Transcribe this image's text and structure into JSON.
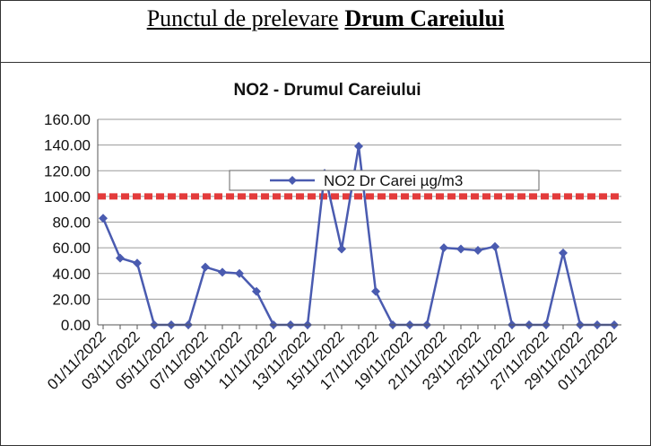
{
  "header": {
    "title_prefix": "Punctul de prelevare",
    "title_bold": "Drum Careiului"
  },
  "chart_data": {
    "type": "line",
    "title": "NO2 - Drumul Careiului",
    "categories": [
      "01/11/2022",
      null,
      "03/11/2022",
      null,
      "05/11/2022",
      null,
      "07/11/2022",
      null,
      "09/11/2022",
      null,
      "11/11/2022",
      null,
      "13/11/2022",
      null,
      "15/11/2022",
      null,
      "17/11/2022",
      null,
      "19/11/2022",
      null,
      "21/11/2022",
      null,
      "23/11/2022",
      null,
      "25/11/2022",
      null,
      "27/11/2022",
      null,
      "29/11/2022",
      null,
      "01/12/2022"
    ],
    "series": [
      {
        "name": "NO2 Dr Carei  µg/m3",
        "color": "#4a5bb0",
        "values": [
          83,
          52,
          48,
          0,
          0,
          0,
          45,
          41,
          40,
          26,
          0,
          0,
          0,
          118,
          59,
          139,
          26,
          0,
          0,
          0,
          60,
          59,
          58,
          61,
          0,
          0,
          0,
          56,
          0,
          0,
          0
        ]
      }
    ],
    "reference_line": {
      "value": 100,
      "color": "#e33b3b"
    },
    "ylim": [
      0,
      160
    ],
    "yticks": [
      {
        "value": 0,
        "label": "0.00"
      },
      {
        "value": 20,
        "label": "20.00"
      },
      {
        "value": 40,
        "label": "40.00"
      },
      {
        "value": 60,
        "label": "60.00"
      },
      {
        "value": 80,
        "label": "80.00"
      },
      {
        "value": 100,
        "label": "100.00"
      },
      {
        "value": 120,
        "label": "120.00"
      },
      {
        "value": 140,
        "label": "140.00"
      },
      {
        "value": 160,
        "label": "160.00"
      }
    ],
    "grid": true
  }
}
